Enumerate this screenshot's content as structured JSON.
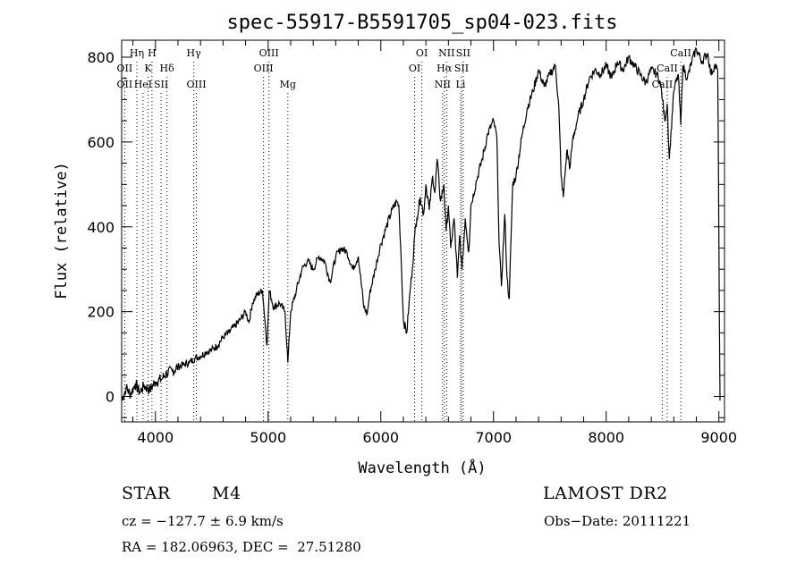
{
  "chart_data": {
    "type": "line",
    "title": "spec-55917-B5591705_sp04-023.fits",
    "xlabel": "Wavelength (Å)",
    "ylabel": "Flux (relative)",
    "xlim": [
      3700,
      9050
    ],
    "ylim": [
      -60,
      840
    ],
    "xticks": [
      4000,
      5000,
      6000,
      7000,
      8000,
      9000
    ],
    "yticks": [
      0,
      200,
      400,
      600,
      800
    ],
    "grid": false,
    "series": [
      {
        "x": [
          3700,
          3740,
          3780,
          3820,
          3860,
          3900,
          3950,
          4000,
          4050,
          4100,
          4150,
          4200,
          4250,
          4300,
          4350,
          4400,
          4450,
          4500,
          4550,
          4600,
          4650,
          4700,
          4750,
          4800,
          4830,
          4860,
          4900,
          4950,
          4990,
          5010,
          5050,
          5100,
          5150,
          5175,
          5200,
          5250,
          5300,
          5350,
          5400,
          5450,
          5500,
          5550,
          5600,
          5650,
          5700,
          5750,
          5800,
          5850,
          5880,
          5900,
          5950,
          6000,
          6050,
          6100,
          6140,
          6160,
          6180,
          6200,
          6230,
          6260,
          6280,
          6300,
          6320,
          6350,
          6380,
          6400,
          6430,
          6460,
          6480,
          6500,
          6530,
          6560,
          6580,
          6600,
          6620,
          6650,
          6680,
          6700,
          6720,
          6750,
          6780,
          6800,
          6850,
          6900,
          6950,
          7000,
          7030,
          7050,
          7070,
          7100,
          7120,
          7140,
          7170,
          7200,
          7250,
          7300,
          7350,
          7400,
          7450,
          7500,
          7550,
          7580,
          7600,
          7620,
          7650,
          7680,
          7700,
          7750,
          7800,
          7850,
          7900,
          7950,
          8000,
          8050,
          8100,
          8150,
          8200,
          8250,
          8300,
          8350,
          8400,
          8450,
          8480,
          8500,
          8520,
          8542,
          8560,
          8600,
          8640,
          8662,
          8680,
          8720,
          8760,
          8800,
          8850,
          8900,
          8930,
          8960,
          8990,
          9000,
          9010
        ],
        "y": [
          -10,
          20,
          5,
          30,
          10,
          25,
          15,
          35,
          40,
          55,
          60,
          70,
          75,
          80,
          90,
          95,
          105,
          110,
          120,
          140,
          150,
          165,
          180,
          200,
          175,
          220,
          240,
          250,
          120,
          250,
          210,
          220,
          200,
          80,
          200,
          250,
          300,
          320,
          300,
          330,
          320,
          270,
          330,
          350,
          340,
          300,
          330,
          210,
          195,
          240,
          300,
          360,
          400,
          440,
          460,
          450,
          330,
          180,
          150,
          250,
          300,
          380,
          420,
          470,
          430,
          500,
          440,
          520,
          480,
          560,
          460,
          500,
          390,
          450,
          350,
          420,
          280,
          380,
          300,
          420,
          340,
          450,
          510,
          560,
          620,
          650,
          610,
          360,
          260,
          430,
          280,
          230,
          500,
          520,
          610,
          680,
          720,
          770,
          730,
          760,
          780,
          680,
          520,
          470,
          580,
          540,
          600,
          660,
          700,
          750,
          770,
          760,
          780,
          750,
          790,
          770,
          800,
          780,
          760,
          740,
          770,
          760,
          740,
          700,
          650,
          690,
          560,
          720,
          760,
          640,
          780,
          750,
          790,
          820,
          790,
          810,
          760,
          780,
          770,
          380,
          -10
        ]
      }
    ],
    "line_labels": [
      {
        "x": 3727,
        "row": 2,
        "text": "OII"
      },
      {
        "x": 3727,
        "row": 3,
        "text": "OII"
      },
      {
        "x": 3835,
        "row": 1,
        "text": "Hη"
      },
      {
        "x": 3890,
        "row": 3,
        "text": "HeI"
      },
      {
        "x": 3934,
        "row": 2,
        "text": "K"
      },
      {
        "x": 3969,
        "row": 1,
        "text": "H"
      },
      {
        "x": 4050,
        "row": 3,
        "text": "SII"
      },
      {
        "x": 4102,
        "row": 2,
        "text": "Hδ"
      },
      {
        "x": 4340,
        "row": 1,
        "text": "Hγ"
      },
      {
        "x": 4363,
        "row": 3,
        "text": "OIII"
      },
      {
        "x": 4959,
        "row": 2,
        "text": "OIII"
      },
      {
        "x": 5007,
        "row": 1,
        "text": "OIII"
      },
      {
        "x": 5175,
        "row": 3,
        "text": "Mg"
      },
      {
        "x": 6300,
        "row": 2,
        "text": "OI"
      },
      {
        "x": 6364,
        "row": 1,
        "text": "OI"
      },
      {
        "x": 6548,
        "row": 3,
        "text": "NII"
      },
      {
        "x": 6563,
        "row": 2,
        "text": "Hα"
      },
      {
        "x": 6584,
        "row": 1,
        "text": "NII"
      },
      {
        "x": 6708,
        "row": 3,
        "text": "Li"
      },
      {
        "x": 6716,
        "row": 2,
        "text": "SII"
      },
      {
        "x": 6731,
        "row": 1,
        "text": "SII"
      },
      {
        "x": 8498,
        "row": 3,
        "text": "CaII"
      },
      {
        "x": 8542,
        "row": 2,
        "text": "CaII"
      },
      {
        "x": 8662,
        "row": 1,
        "text": "CaII"
      }
    ]
  },
  "info": {
    "class_label": "STAR",
    "subclass_label": "M4",
    "survey_label": "LAMOST DR2",
    "cz_text": "cz = −127.7 ± 6.9 km/s",
    "obs_date_text": "Obs−Date: 20111221",
    "coords_text": "RA = 182.06963, DEC =  27.51280"
  }
}
